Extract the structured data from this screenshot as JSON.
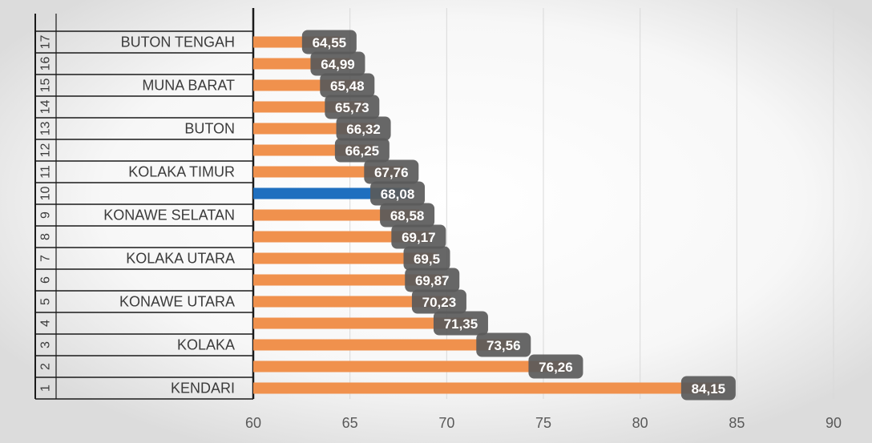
{
  "chart_data": {
    "type": "bar",
    "orientation": "horizontal",
    "ranks": [
      "1",
      "2",
      "3",
      "4",
      "5",
      "6",
      "7",
      "8",
      "9",
      "10",
      "11",
      "12",
      "13",
      "14",
      "15",
      "16",
      "17"
    ],
    "categories": [
      "KENDARI",
      "",
      "KOLAKA",
      "",
      "KONAWE UTARA",
      "",
      "KOLAKA UTARA",
      "",
      "KONAWE SELATAN",
      "",
      "KOLAKA TIMUR",
      "",
      "BUTON",
      "",
      "MUNA BARAT",
      "",
      "BUTON TENGAH"
    ],
    "values": [
      84.15,
      76.26,
      73.56,
      71.35,
      70.23,
      69.87,
      69.5,
      69.17,
      68.58,
      68.08,
      67.76,
      66.25,
      66.32,
      65.73,
      65.48,
      64.99,
      64.55
    ],
    "value_labels": [
      "84,15",
      "76,26",
      "73,56",
      "71,35",
      "70,23",
      "69,87",
      "69,5",
      "69,17",
      "68,58",
      "68,08",
      "67,76",
      "66,25",
      "66,32",
      "65,73",
      "65,48",
      "64,99",
      "64,55"
    ],
    "highlight_index": 9,
    "xlim": [
      60,
      90
    ],
    "xticks": [
      60,
      65,
      70,
      75,
      80,
      85,
      90
    ],
    "xtick_labels": [
      "60",
      "65",
      "70",
      "75",
      "80",
      "85",
      "90"
    ],
    "grid": true,
    "colors": {
      "bar": "#f0914d",
      "highlight": "#1f6fbf",
      "label_box": "#5a5a5a",
      "grid": "#d9d9d9"
    }
  }
}
